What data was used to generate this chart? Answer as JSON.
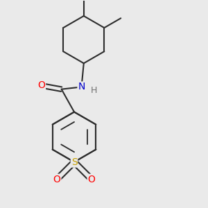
{
  "background_color": "#EAEAEA",
  "bond_color": "#2d2d2d",
  "bond_width": 1.5,
  "atom_colors": {
    "O": "#FF0000",
    "N": "#0000CC",
    "S": "#C8A000",
    "H": "#707070"
  },
  "font_size": 10
}
